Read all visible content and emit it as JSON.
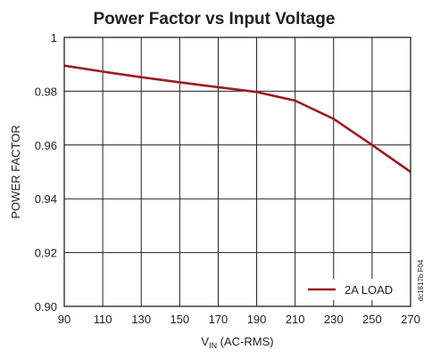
{
  "chart_data": {
    "type": "line",
    "title": "Power Factor vs Input Voltage",
    "xlabel_main": "V",
    "xlabel_sub": "IN",
    "xlabel_rest": " (AC-RMS)",
    "ylabel": "POWER FACTOR",
    "x_ticks": [
      90,
      110,
      130,
      150,
      170,
      190,
      210,
      230,
      250,
      270
    ],
    "y_ticks": [
      0.9,
      0.92,
      0.94,
      0.96,
      0.98,
      1
    ],
    "y_tick_labels": [
      "0.90",
      "0.92",
      "0.94",
      "0.96",
      "0.98",
      "1"
    ],
    "xlim": [
      90,
      270
    ],
    "ylim": [
      0.9,
      1.0
    ],
    "grid": true,
    "legend_placement": "bottom-right",
    "series": [
      {
        "name": "2A LOAD",
        "color": "#9b1c20",
        "x": [
          90,
          110,
          130,
          150,
          170,
          190,
          210,
          230,
          250,
          270
        ],
        "y": [
          0.9895,
          0.9873,
          0.9852,
          0.9833,
          0.9815,
          0.9797,
          0.9765,
          0.9697,
          0.96,
          0.95
        ]
      }
    ],
    "figure_code": "dc1817b F04"
  }
}
